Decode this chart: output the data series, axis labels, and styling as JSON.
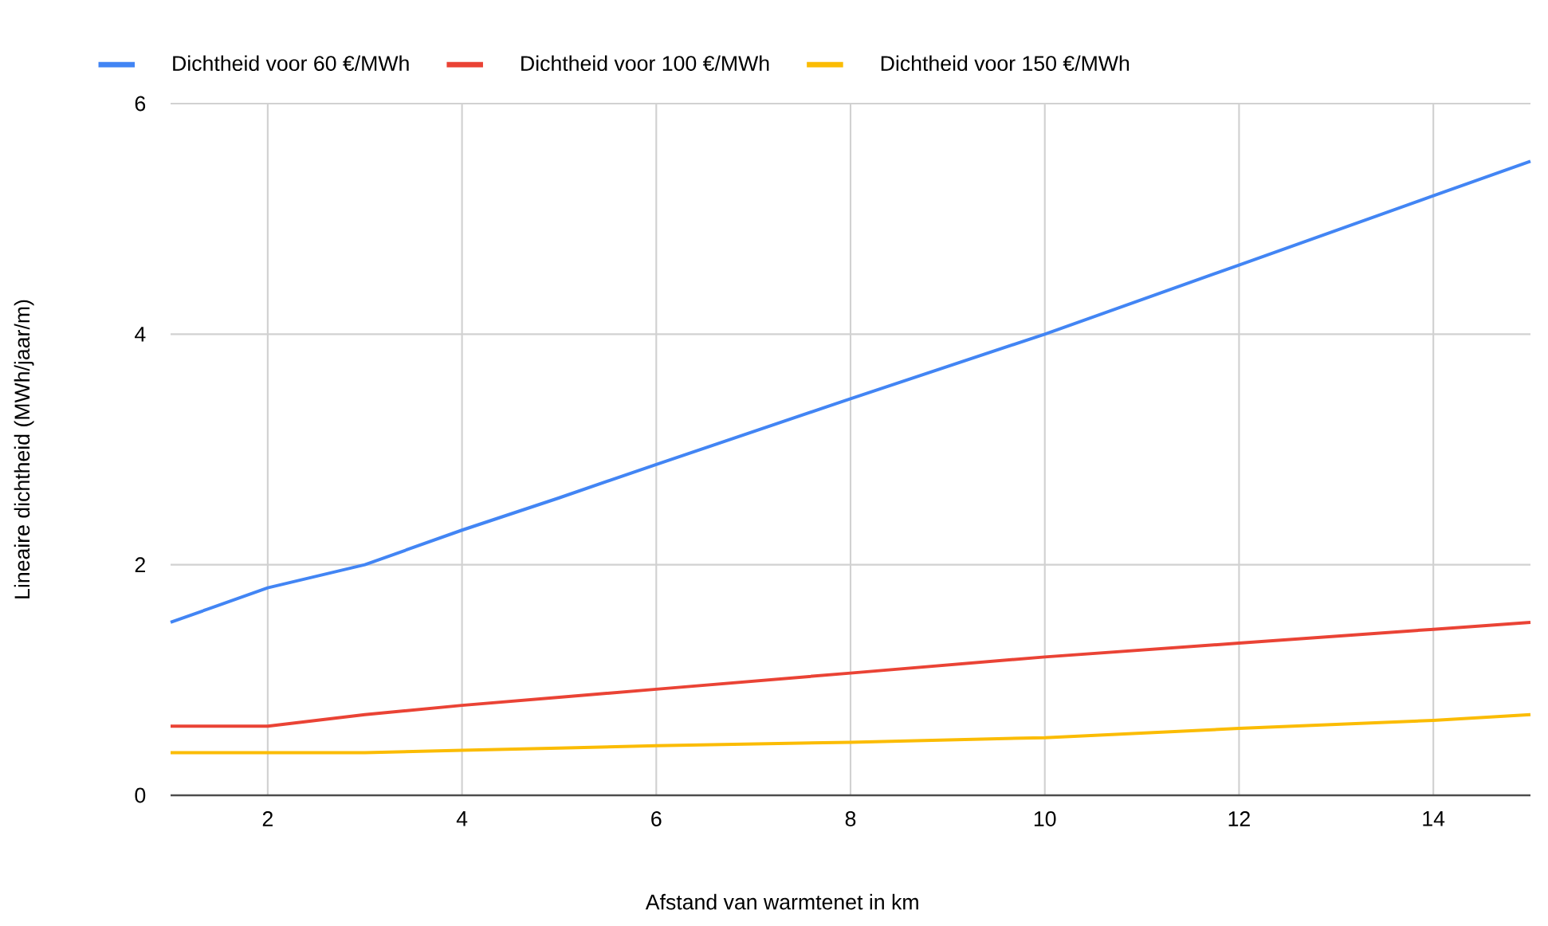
{
  "chart_data": {
    "type": "line",
    "xlabel": "Afstand van warmtenet in km",
    "ylabel": "Lineaire dichtheid (MWh/jaar/m)",
    "x": [
      1,
      2,
      3,
      4,
      5,
      6,
      8,
      10,
      12,
      14,
      15
    ],
    "series": [
      {
        "name": "Dichtheid voor 60 €/MWh",
        "color": "#4285f4",
        "values": [
          1.5,
          1.8,
          2.0,
          2.3,
          2.58,
          2.87,
          3.44,
          4.0,
          4.6,
          5.2,
          5.5
        ]
      },
      {
        "name": "Dichtheid voor 100 €/MWh",
        "color": "#ea4335",
        "values": [
          0.6,
          0.6,
          0.7,
          0.78,
          0.85,
          0.92,
          1.06,
          1.2,
          1.32,
          1.44,
          1.5
        ]
      },
      {
        "name": "Dichtheid voor 150 €/MWh",
        "color": "#fbbc04",
        "values": [
          0.37,
          0.37,
          0.37,
          0.39,
          0.41,
          0.43,
          0.46,
          0.5,
          0.58,
          0.65,
          0.7
        ]
      }
    ],
    "xlim": [
      1,
      15
    ],
    "ylim": [
      0,
      6
    ],
    "xticks": [
      2,
      4,
      6,
      8,
      10,
      12,
      14
    ],
    "yticks": [
      0,
      2,
      4,
      6
    ],
    "grid": true,
    "legend": "top",
    "marker": "none",
    "line_style": "solid"
  }
}
